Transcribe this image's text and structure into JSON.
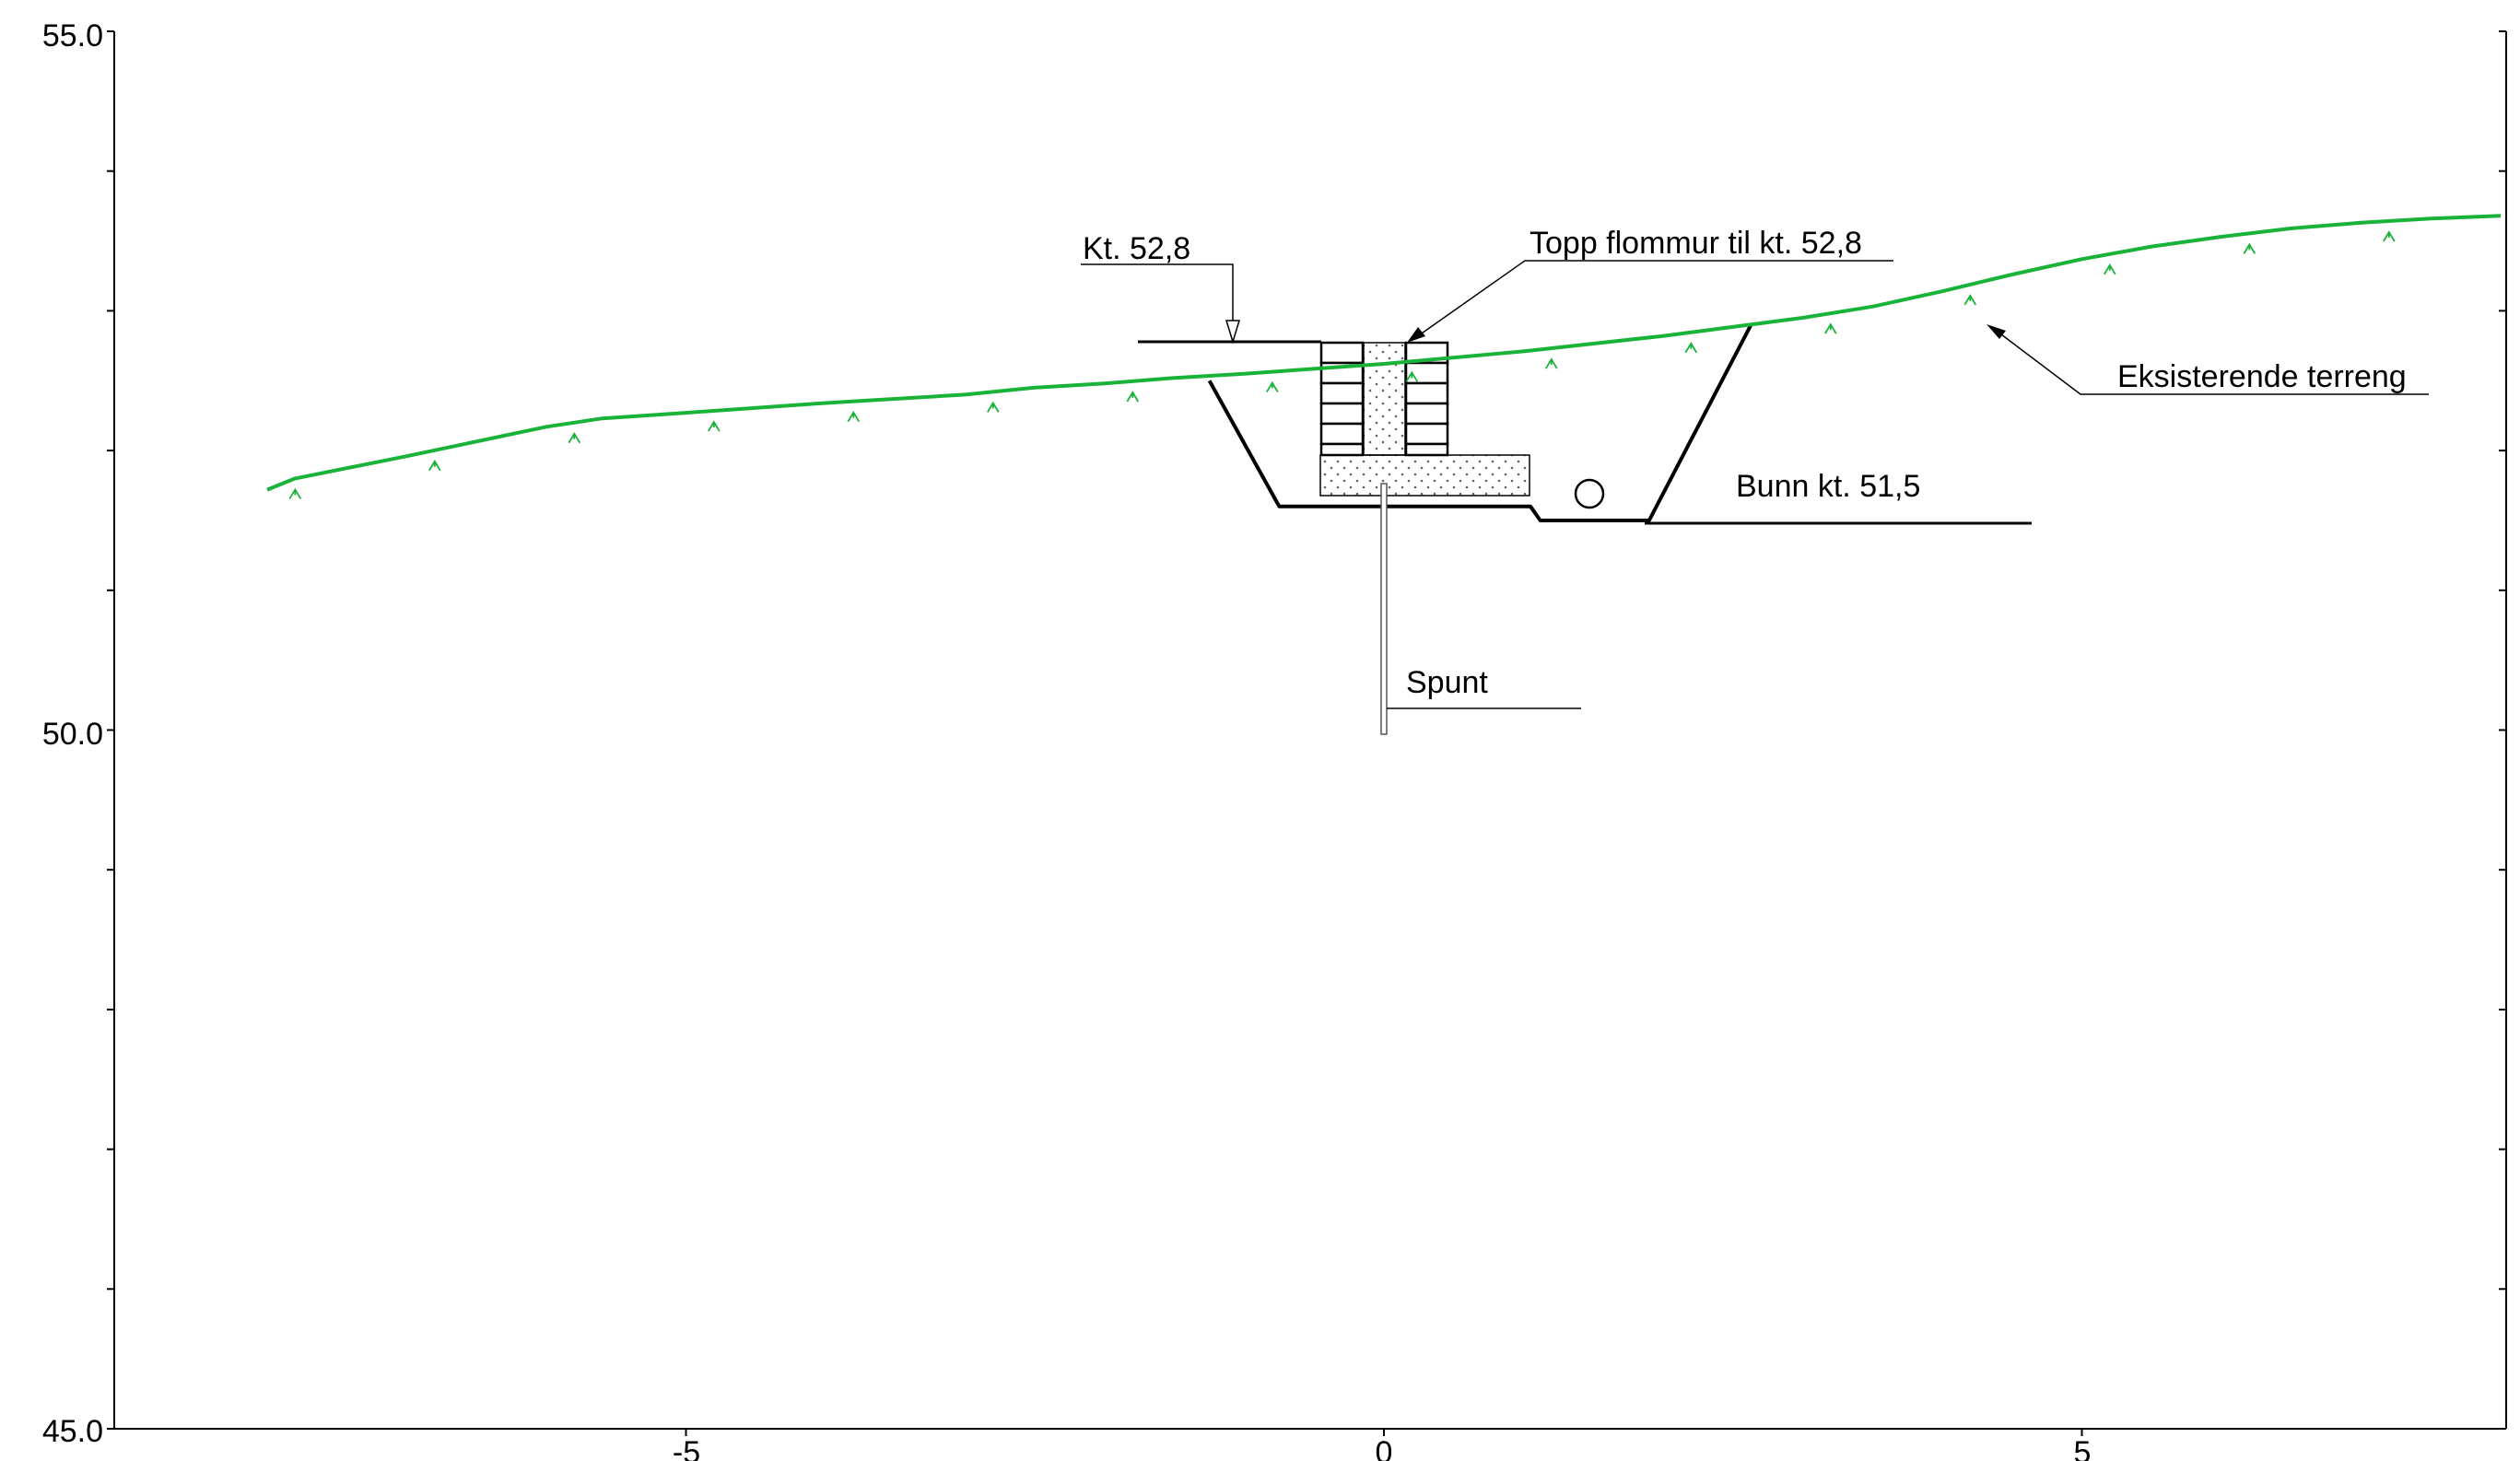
{
  "chart_data": {
    "type": "line",
    "x_ticks": [
      -5,
      0,
      5
    ],
    "y_ticks": [
      "45.0",
      "50.0",
      "55.0"
    ],
    "xlim": [
      -9.1,
      8.0
    ],
    "ylim": [
      45.0,
      55.0
    ],
    "grid": false,
    "series": [
      {
        "kind": "terrain",
        "color": "#1ab33a",
        "x": [
          -8.0,
          -7.8,
          -7.0,
          -6.0,
          -5.6,
          -5.0,
          -4.0,
          -3.0,
          -2.5,
          -2.0,
          -1.5,
          -1.0,
          0.0,
          1.0,
          2.0,
          3.0,
          3.5,
          4.0,
          4.5,
          5.0,
          5.5,
          6.0,
          6.5,
          7.0,
          7.5,
          8.0
        ],
        "y": [
          51.72,
          51.8,
          51.96,
          52.17,
          52.23,
          52.27,
          52.34,
          52.4,
          52.45,
          52.48,
          52.52,
          52.55,
          52.62,
          52.71,
          52.82,
          52.95,
          53.03,
          53.14,
          53.26,
          53.37,
          53.46,
          53.53,
          53.59,
          53.63,
          53.66,
          53.68
        ]
      },
      {
        "kind": "excavation",
        "color": "#000000",
        "x": [
          -1.25,
          -0.75,
          1.05,
          1.12,
          1.9,
          2.63
        ],
        "y": [
          52.5,
          51.6,
          51.6,
          51.5,
          51.5,
          52.9
        ]
      }
    ],
    "annotations": [
      {
        "text": "Kt. 52,8"
      },
      {
        "text": "Topp flommur til kt. 52,8"
      },
      {
        "text": "Eksisterende terreng"
      },
      {
        "text": "Bunn kt. 51,5"
      },
      {
        "text": "Spunt"
      }
    ]
  }
}
